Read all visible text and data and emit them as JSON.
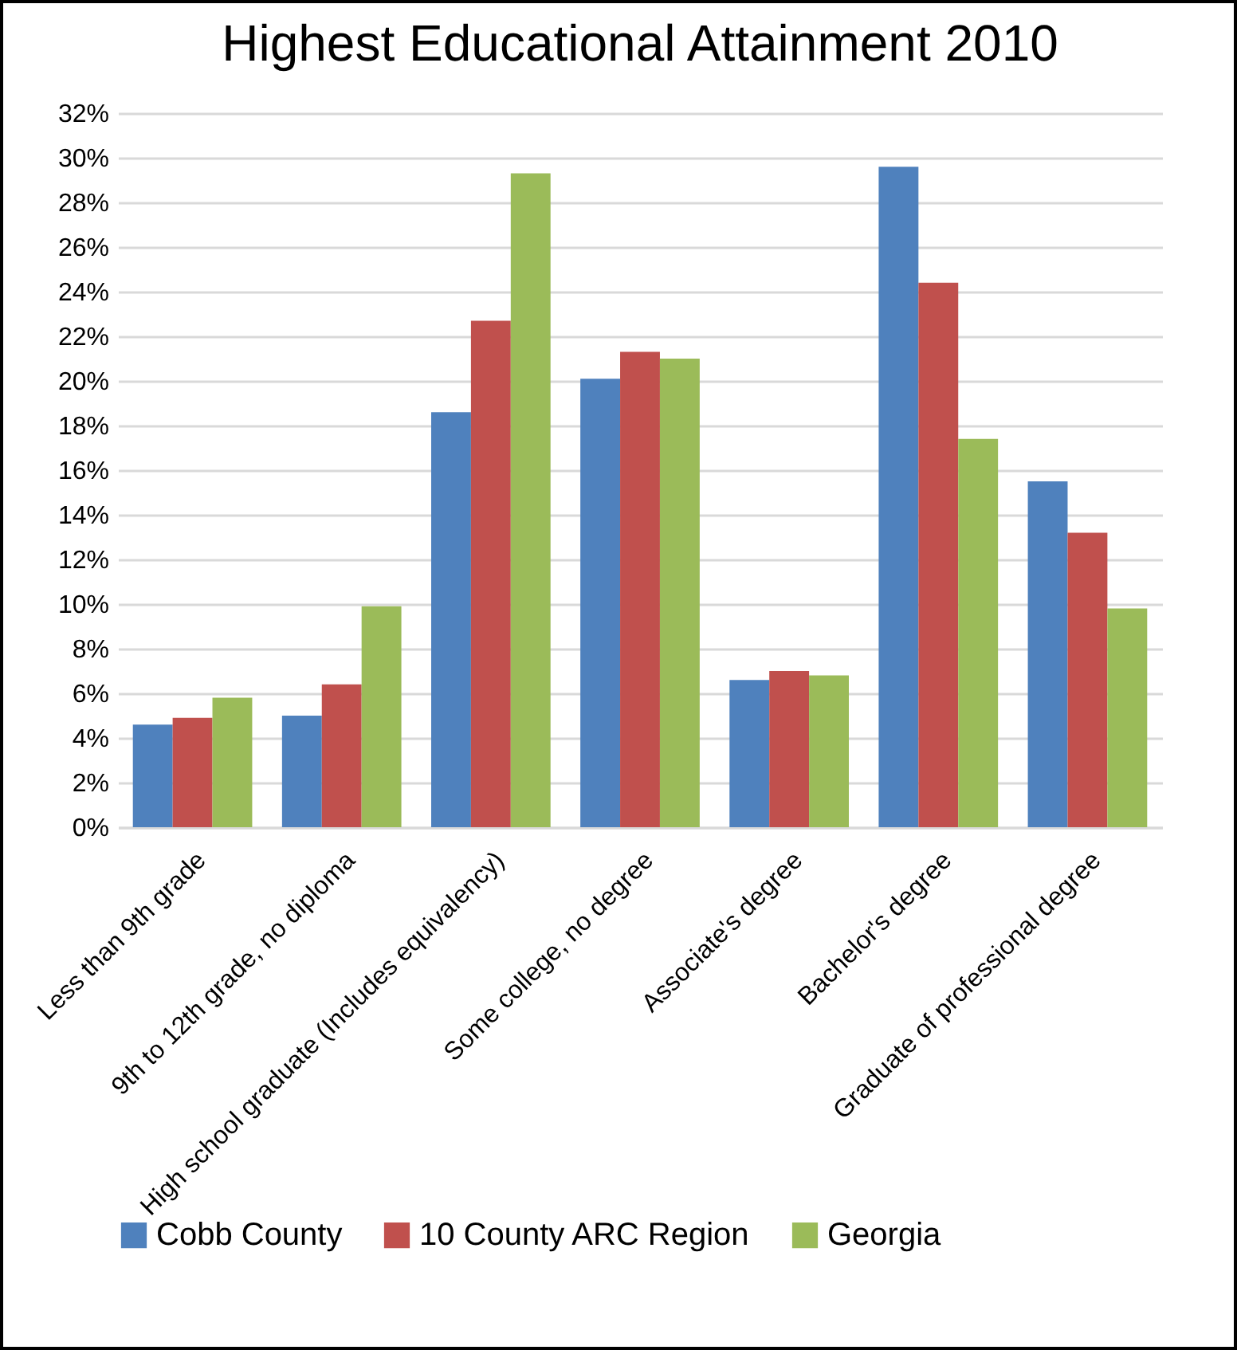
{
  "chart_data": {
    "type": "bar",
    "title": "Highest Educational Attainment 2010",
    "categories": [
      "Less than 9th grade",
      "9th to 12th grade, no diploma",
      "High school graduate (Includes equivalency)",
      "Some college, no degree",
      "Associate's degree",
      "Bachelor's degree",
      "Graduate of professional degree"
    ],
    "series": [
      {
        "name": "Cobb County",
        "color": "#4f81bd",
        "values": [
          4.6,
          5.0,
          18.6,
          20.1,
          6.6,
          29.6,
          15.5
        ]
      },
      {
        "name": "10 County ARC Region",
        "color": "#c0504d",
        "values": [
          4.9,
          6.4,
          22.7,
          21.3,
          7.0,
          24.4,
          13.2
        ]
      },
      {
        "name": "Georgia",
        "color": "#9bbb59",
        "values": [
          5.8,
          9.9,
          29.3,
          21.0,
          6.8,
          17.4,
          9.8
        ]
      }
    ],
    "ylim": [
      0,
      32
    ],
    "yticks": [
      {
        "value": 0,
        "label": "0%"
      },
      {
        "value": 2,
        "label": "2%"
      },
      {
        "value": 4,
        "label": "4%"
      },
      {
        "value": 6,
        "label": "6%"
      },
      {
        "value": 8,
        "label": "8%"
      },
      {
        "value": 10,
        "label": "10%"
      },
      {
        "value": 12,
        "label": "12%"
      },
      {
        "value": 14,
        "label": "14%"
      },
      {
        "value": 16,
        "label": "16%"
      },
      {
        "value": 18,
        "label": "18%"
      },
      {
        "value": 20,
        "label": "20%"
      },
      {
        "value": 22,
        "label": "22%"
      },
      {
        "value": 24,
        "label": "24%"
      },
      {
        "value": 26,
        "label": "26%"
      },
      {
        "value": 28,
        "label": "28%"
      },
      {
        "value": 30,
        "label": "30%"
      },
      {
        "value": 32,
        "label": "32%"
      }
    ],
    "grid": "y",
    "legend": "bottom"
  }
}
